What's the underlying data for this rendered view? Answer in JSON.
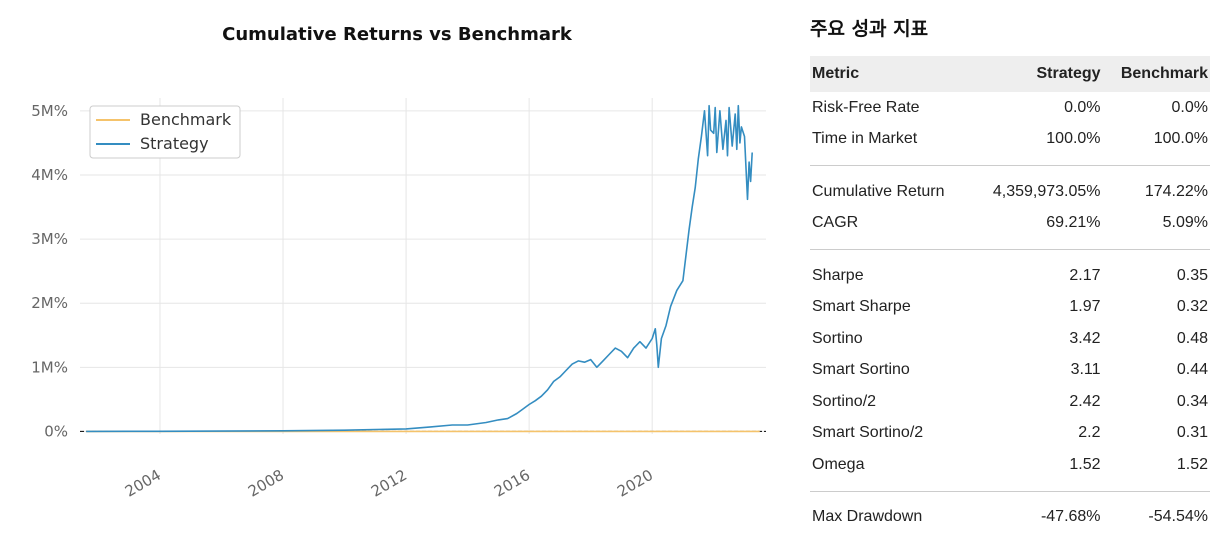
{
  "chart_data": {
    "type": "line",
    "title": "Cumulative Returns vs Benchmark",
    "xlabel": "",
    "ylabel": "",
    "x_ticks": [
      "2004",
      "2008",
      "2012",
      "2016",
      "2020"
    ],
    "y_ticks": [
      "0%",
      "1M%",
      "2M%",
      "3M%",
      "4M%",
      "5M%"
    ],
    "xlim": [
      2001.4,
      2023.7
    ],
    "ylim": [
      -0.04,
      5.2
    ],
    "y_unit": "M%",
    "grid": true,
    "legend": "top-left",
    "series": [
      {
        "name": "Benchmark",
        "color": "#f5c36b",
        "x": [
          2001.6,
          2023.5
        ],
        "y": [
          0.0,
          0.0
        ]
      },
      {
        "name": "Strategy",
        "color": "#348dc1",
        "x": [
          2001.6,
          2004,
          2006,
          2008,
          2010,
          2011,
          2012,
          2012.8,
          2013.5,
          2014.0,
          2014.6,
          2015.0,
          2015.3,
          2015.6,
          2015.8,
          2016.0,
          2016.2,
          2016.4,
          2016.6,
          2016.8,
          2017.0,
          2017.2,
          2017.4,
          2017.6,
          2017.8,
          2018.0,
          2018.2,
          2018.4,
          2018.6,
          2018.8,
          2019.0,
          2019.2,
          2019.4,
          2019.6,
          2019.8,
          2020.0,
          2020.1,
          2020.15,
          2020.2,
          2020.3,
          2020.45,
          2020.6,
          2020.8,
          2021.0,
          2021.1,
          2021.2,
          2021.3,
          2021.4,
          2021.5,
          2021.6,
          2021.7,
          2021.8,
          2021.85,
          2021.9,
          2022.0,
          2022.05,
          2022.1,
          2022.2,
          2022.3,
          2022.4,
          2022.45,
          2022.5,
          2022.6,
          2022.7,
          2022.75,
          2022.8,
          2022.85,
          2022.9,
          2023.0,
          2023.1,
          2023.15,
          2023.2,
          2023.25
        ],
        "y": [
          0.0,
          0.002,
          0.005,
          0.01,
          0.02,
          0.03,
          0.04,
          0.07,
          0.1,
          0.1,
          0.14,
          0.18,
          0.2,
          0.28,
          0.35,
          0.42,
          0.48,
          0.55,
          0.65,
          0.78,
          0.85,
          0.95,
          1.05,
          1.1,
          1.08,
          1.12,
          1.0,
          1.1,
          1.2,
          1.3,
          1.25,
          1.15,
          1.3,
          1.4,
          1.3,
          1.45,
          1.6,
          1.35,
          1.0,
          1.45,
          1.65,
          1.95,
          2.2,
          2.35,
          2.75,
          3.15,
          3.5,
          3.8,
          4.25,
          4.6,
          5.0,
          4.3,
          5.08,
          4.7,
          4.65,
          5.05,
          4.35,
          5.0,
          4.4,
          4.85,
          4.3,
          5.05,
          4.45,
          4.95,
          4.4,
          5.08,
          4.5,
          4.75,
          4.6,
          3.62,
          4.2,
          3.9,
          4.35
        ]
      }
    ]
  },
  "metrics": {
    "title": "주요 성과 지표",
    "headers": [
      "Metric",
      "Strategy",
      "Benchmark"
    ],
    "rows": [
      {
        "metric": "Risk-Free Rate",
        "strategy": "0.0%",
        "benchmark": "0.0%"
      },
      {
        "metric": "Time in Market",
        "strategy": "100.0%",
        "benchmark": "100.0%"
      },
      {
        "metric": "Cumulative Return",
        "strategy": "4,359,973.05%",
        "benchmark": "174.22%"
      },
      {
        "metric": "CAGR",
        "strategy": "69.21%",
        "benchmark": "5.09%"
      },
      {
        "metric": "Sharpe",
        "strategy": "2.17",
        "benchmark": "0.35"
      },
      {
        "metric": "Smart Sharpe",
        "strategy": "1.97",
        "benchmark": "0.32"
      },
      {
        "metric": "Sortino",
        "strategy": "3.42",
        "benchmark": "0.48"
      },
      {
        "metric": "Smart Sortino",
        "strategy": "3.11",
        "benchmark": "0.44"
      },
      {
        "metric": "Sortino/2",
        "strategy": "2.42",
        "benchmark": "0.34"
      },
      {
        "metric": "Smart Sortino/2",
        "strategy": "2.2",
        "benchmark": "0.31"
      },
      {
        "metric": "Omega",
        "strategy": "1.52",
        "benchmark": "1.52"
      },
      {
        "metric": "Max Drawdown",
        "strategy": "-47.68%",
        "benchmark": "-54.54%"
      }
    ]
  }
}
